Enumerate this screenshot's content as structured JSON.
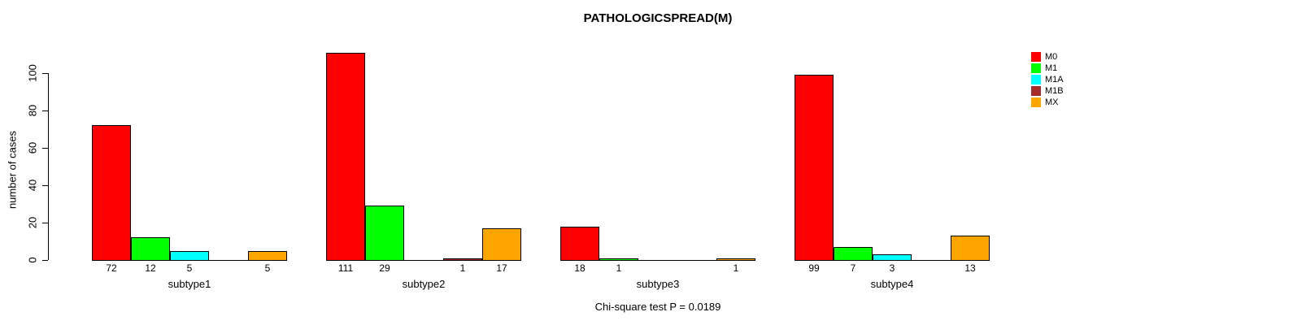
{
  "chart_data": {
    "type": "bar",
    "title": "PATHOLOGICSPREAD(M)",
    "ylabel": "number of cases",
    "xlabel": "",
    "footnote": "Chi-square test P = 0.0189",
    "categories": [
      "subtype1",
      "subtype2",
      "subtype3",
      "subtype4"
    ],
    "series": [
      {
        "name": "M0",
        "color": "#FF0000",
        "values": [
          72,
          111,
          18,
          99
        ]
      },
      {
        "name": "M1",
        "color": "#00FF00",
        "values": [
          12,
          29,
          1,
          7
        ]
      },
      {
        "name": "M1A",
        "color": "#00FFFF",
        "values": [
          5,
          0,
          0,
          3
        ]
      },
      {
        "name": "M1B",
        "color": "#A52A2A",
        "values": [
          0,
          1,
          0,
          0
        ]
      },
      {
        "name": "MX",
        "color": "#FFA500",
        "values": [
          5,
          17,
          1,
          13
        ]
      }
    ],
    "yticks": [
      0,
      20,
      40,
      60,
      80,
      100
    ],
    "ylim": [
      0,
      115
    ],
    "bar_value_labels_shown": true,
    "grid": false,
    "legend_position": "top-right",
    "axis_color": "#000000",
    "background_color": "#FFFFFF"
  }
}
